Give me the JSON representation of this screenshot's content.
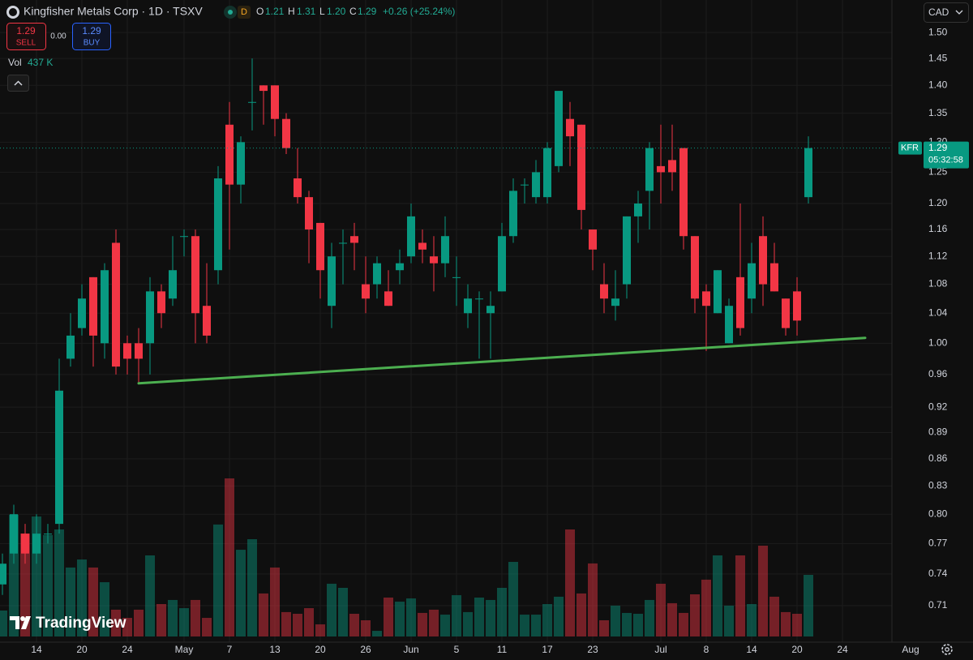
{
  "header": {
    "title": "Kingfisher Metals Corp · 1D · TSXV",
    "status": "D",
    "o_label": "O",
    "o_value": "1.21",
    "h_label": "H",
    "h_value": "1.31",
    "l_label": "L",
    "l_value": "1.20",
    "c_label": "C",
    "c_value": "1.29",
    "change": "+0.26 (+25.24%)"
  },
  "trading": {
    "sell_price": "1.29",
    "sell_label": "SELL",
    "spread": "0.00",
    "buy_price": "1.29",
    "buy_label": "BUY"
  },
  "volume_header": {
    "label": "Vol",
    "value": "437 K"
  },
  "currency": "CAD",
  "branding": "TradingView",
  "chart_data": {
    "type": "candlestick",
    "categories": [
      null,
      null,
      null,
      "14",
      null,
      null,
      null,
      "20",
      null,
      null,
      null,
      "24",
      null,
      null,
      null,
      null,
      "May",
      null,
      null,
      null,
      "7",
      null,
      null,
      null,
      "13",
      null,
      null,
      null,
      "20",
      null,
      null,
      null,
      "26",
      null,
      null,
      null,
      "Jun",
      null,
      null,
      null,
      "5",
      null,
      null,
      null,
      "11",
      null,
      null,
      null,
      "17",
      null,
      null,
      null,
      "23",
      null,
      null,
      null,
      null,
      null,
      "Jul",
      null,
      null,
      null,
      "8",
      null,
      null,
      null,
      "14",
      null,
      null,
      null,
      "20",
      null,
      null,
      null,
      "24",
      null,
      null,
      null,
      null,
      null,
      "Aug"
    ],
    "open": [
      0.73,
      0.76,
      0.78,
      0.76,
      0.78,
      0.79,
      0.98,
      1.02,
      1.09,
      1.0,
      1.14,
      1.0,
      1.0,
      1.0,
      1.07,
      1.06,
      1.15,
      1.15,
      1.05,
      1.1,
      1.33,
      1.23,
      1.37,
      1.4,
      1.4,
      1.34,
      1.24,
      1.21,
      1.17,
      1.05,
      1.14,
      1.15,
      1.08,
      1.08,
      1.07,
      1.1,
      1.12,
      1.14,
      1.12,
      1.11,
      1.09,
      1.04,
      1.06,
      1.04,
      1.07,
      1.15,
      1.23,
      1.21,
      1.21,
      1.26,
      1.34,
      1.33,
      1.16,
      1.08,
      1.05,
      1.08,
      1.18,
      1.22,
      1.26,
      1.27,
      1.29,
      1.15,
      1.07,
      1.04,
      1.0,
      1.09,
      1.06,
      1.15,
      1.11,
      1.06,
      1.07,
      1.21,
      null,
      null,
      null,
      null,
      null,
      null,
      null,
      null,
      null
    ],
    "high": [
      0.76,
      0.81,
      0.79,
      0.8,
      0.79,
      0.98,
      1.04,
      1.08,
      1.09,
      1.11,
      1.16,
      1.01,
      1.02,
      1.09,
      1.08,
      1.15,
      1.16,
      1.16,
      1.11,
      1.26,
      1.37,
      1.31,
      1.45,
      1.4,
      1.4,
      1.35,
      1.29,
      1.22,
      1.17,
      1.14,
      1.16,
      1.17,
      1.12,
      1.12,
      1.1,
      1.13,
      1.2,
      1.16,
      1.15,
      1.18,
      1.12,
      1.08,
      1.07,
      1.07,
      1.17,
      1.24,
      1.24,
      1.27,
      1.3,
      1.39,
      1.37,
      1.33,
      1.16,
      1.11,
      1.1,
      1.18,
      1.22,
      1.3,
      1.33,
      1.33,
      1.29,
      1.15,
      1.08,
      1.1,
      1.06,
      1.2,
      1.14,
      1.18,
      1.14,
      1.06,
      1.09,
      1.31,
      null,
      null,
      null,
      null,
      null,
      null,
      null,
      null,
      null
    ],
    "low": [
      0.72,
      0.75,
      0.75,
      0.75,
      0.77,
      0.78,
      0.97,
      1.01,
      0.97,
      0.98,
      0.96,
      0.96,
      0.95,
      0.96,
      1.02,
      1.05,
      1.12,
      1.0,
      1.0,
      1.08,
      1.13,
      1.2,
      1.32,
      1.33,
      1.31,
      1.28,
      1.2,
      1.11,
      1.06,
      1.02,
      1.08,
      1.1,
      1.04,
      1.06,
      1.05,
      1.08,
      1.11,
      1.11,
      1.07,
      1.09,
      1.05,
      1.02,
      0.98,
      0.98,
      1.07,
      1.14,
      1.2,
      1.2,
      1.2,
      1.25,
      1.26,
      1.16,
      1.1,
      1.04,
      1.03,
      1.06,
      1.14,
      1.16,
      1.2,
      1.22,
      1.13,
      1.04,
      0.99,
      1.04,
      1.0,
      1.01,
      1.04,
      1.05,
      1.07,
      1.01,
      1.01,
      1.2,
      null,
      null,
      null,
      null,
      null,
      null,
      null,
      null,
      null
    ],
    "close": [
      0.75,
      0.8,
      0.76,
      0.78,
      0.78,
      0.94,
      1.01,
      1.06,
      1.01,
      1.1,
      0.97,
      0.98,
      0.98,
      1.07,
      1.04,
      1.1,
      1.15,
      1.04,
      1.01,
      1.24,
      1.23,
      1.3,
      1.37,
      1.39,
      1.34,
      1.29,
      1.21,
      1.16,
      1.1,
      1.12,
      1.14,
      1.14,
      1.06,
      1.11,
      1.05,
      1.11,
      1.18,
      1.13,
      1.11,
      1.15,
      1.09,
      1.06,
      1.06,
      1.05,
      1.15,
      1.22,
      1.23,
      1.25,
      1.29,
      1.39,
      1.31,
      1.19,
      1.13,
      1.06,
      1.06,
      1.18,
      1.2,
      1.29,
      1.25,
      1.25,
      1.15,
      1.06,
      1.05,
      1.1,
      1.05,
      1.02,
      1.11,
      1.08,
      1.07,
      1.02,
      1.03,
      1.29,
      null,
      null,
      null,
      null,
      null,
      null,
      null,
      null,
      null
    ],
    "volume": [
      184,
      863,
      730,
      851,
      719,
      759,
      489,
      546,
      489,
      385,
      190,
      132,
      190,
      575,
      230,
      259,
      201,
      259,
      132,
      794,
      1121,
      615,
      690,
      305,
      489,
      173,
      161,
      201,
      86,
      374,
      345,
      161,
      115,
      40,
      276,
      247,
      270,
      167,
      190,
      155,
      293,
      173,
      276,
      259,
      345,
      529,
      155,
      155,
      230,
      282,
      759,
      305,
      518,
      115,
      219,
      167,
      161,
      259,
      374,
      236,
      167,
      299,
      403,
      575,
      219,
      575,
      230,
      644,
      282,
      173,
      161,
      437,
      null,
      null,
      null,
      null,
      null,
      null,
      null,
      null,
      null
    ],
    "up_color": "#089981",
    "down_color": "#f23645",
    "log_scale": true,
    "grid": true,
    "ylim": [
      0.677,
      1.565
    ],
    "vlim": [
      0,
      1400
    ],
    "yticks": [
      {
        "value": 1.5,
        "label": "1.50"
      },
      1.45,
      {
        "value": 1.4,
        "label": "1.40"
      },
      1.35,
      {
        "value": 1.3,
        "label": "1.30"
      },
      1.25,
      {
        "value": 1.2,
        "label": "1.20"
      },
      1.16,
      1.12,
      1.08,
      1.04,
      {
        "value": 1.0,
        "label": "1.00"
      },
      0.96,
      0.92,
      0.89,
      0.86,
      0.83,
      {
        "value": 0.8,
        "label": "0.80"
      },
      0.77,
      0.74,
      0.71
    ],
    "symbol": "KFR",
    "last_price": 1.29,
    "countdown": "05:32:58",
    "trendline": {
      "x": [
        12,
        76
      ],
      "y": [
        0.949,
        1.007
      ],
      "color": "#4caf50"
    }
  }
}
